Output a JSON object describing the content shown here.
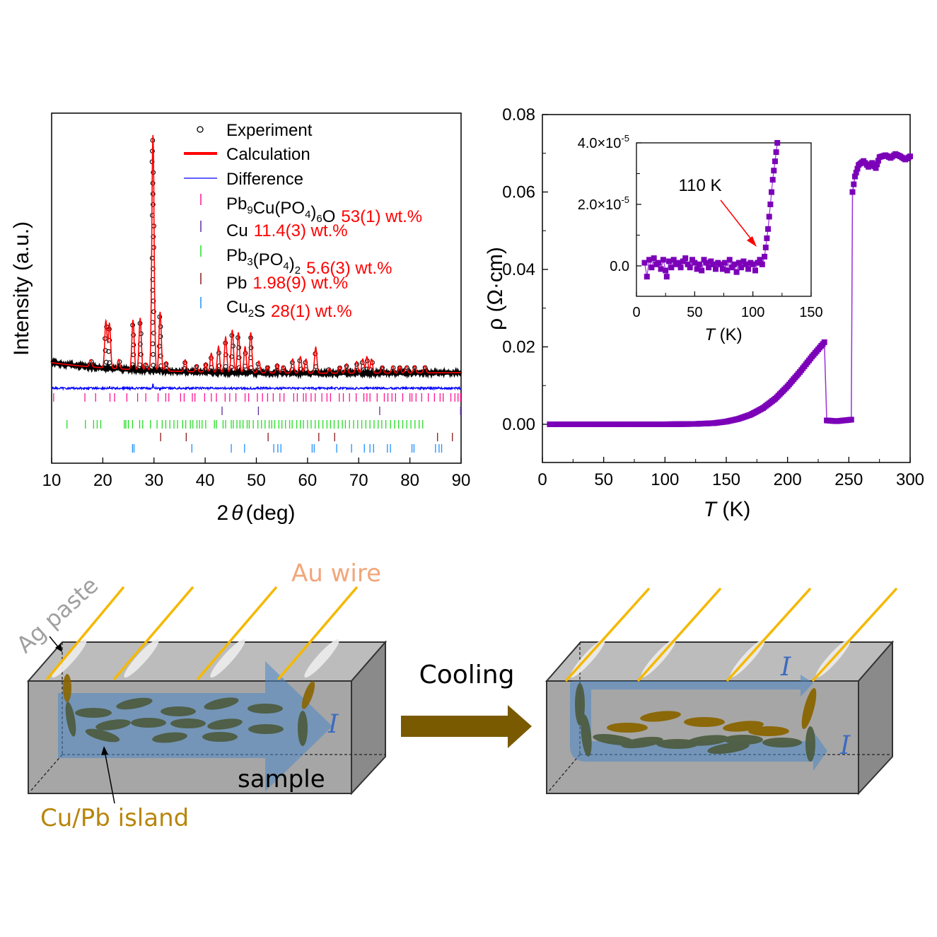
{
  "chart_data": [
    {
      "type": "line",
      "title": "",
      "xlabel": "2θ (deg)",
      "xlabel_parts": {
        "num": "2",
        "sym": "θ",
        "unit": "(deg)"
      },
      "ylabel": "Intensity (a.u.)",
      "xlim": [
        10,
        90
      ],
      "xticks": [
        "10",
        "20",
        "30",
        "40",
        "50",
        "60",
        "70",
        "80",
        "90"
      ],
      "yticks": [],
      "legend_placement": "top-right",
      "legend": [
        {
          "marker": "circle",
          "label": "Experiment",
          "color": "#000000"
        },
        {
          "marker": "line",
          "label": "Calculation",
          "color": "#ff0000"
        },
        {
          "marker": "line",
          "label": "Difference",
          "color": "#0000ff"
        },
        {
          "marker": "tick",
          "label_main": "Pb",
          "label_parts": [
            [
              "Pb",
              ""
            ],
            [
              "9",
              "sub"
            ],
            [
              "Cu(PO",
              ""
            ],
            [
              "4",
              "sub"
            ],
            [
              ")",
              ""
            ],
            [
              "6",
              "sub"
            ],
            [
              "O",
              ""
            ]
          ],
          "fraction": "53(1) wt.%",
          "color": "#ff1493"
        },
        {
          "marker": "tick",
          "label_parts": [
            [
              "Cu",
              ""
            ]
          ],
          "fraction": "11.4(3) wt.%",
          "color": "#5b2c9f"
        },
        {
          "marker": "tick",
          "label_parts": [
            [
              "Pb",
              ""
            ],
            [
              "3",
              "sub"
            ],
            [
              "(PO",
              ""
            ],
            [
              "4",
              "sub"
            ],
            [
              ")",
              ""
            ],
            [
              "2",
              "sub"
            ]
          ],
          "fraction": "5.6(3) wt.%",
          "color": "#22dd22"
        },
        {
          "marker": "tick",
          "label_parts": [
            [
              "Pb",
              ""
            ]
          ],
          "fraction": "1.98(9) wt.%",
          "color": "#8b1a1a"
        },
        {
          "marker": "tick",
          "label_parts": [
            [
              "Cu",
              ""
            ],
            [
              "2",
              "sub"
            ],
            [
              "S",
              ""
            ]
          ],
          "fraction": "28(1) wt.%",
          "color": "#1e90ff"
        }
      ],
      "peaks": [
        {
          "x": 17.6,
          "h": 0.03
        },
        {
          "x": 20.6,
          "h": 0.2
        },
        {
          "x": 21.3,
          "h": 0.19
        },
        {
          "x": 23.1,
          "h": 0.04
        },
        {
          "x": 25.9,
          "h": 0.21
        },
        {
          "x": 27.3,
          "h": 0.22
        },
        {
          "x": 28.5,
          "h": 0.03
        },
        {
          "x": 29.8,
          "h": 1.0
        },
        {
          "x": 31.2,
          "h": 0.25
        },
        {
          "x": 32.4,
          "h": 0.04
        },
        {
          "x": 36.1,
          "h": 0.05
        },
        {
          "x": 38.3,
          "h": 0.03
        },
        {
          "x": 40.1,
          "h": 0.04
        },
        {
          "x": 41.2,
          "h": 0.08
        },
        {
          "x": 42.6,
          "h": 0.11
        },
        {
          "x": 44.0,
          "h": 0.15
        },
        {
          "x": 45.3,
          "h": 0.18
        },
        {
          "x": 46.5,
          "h": 0.17
        },
        {
          "x": 47.8,
          "h": 0.11
        },
        {
          "x": 48.9,
          "h": 0.17
        },
        {
          "x": 50.5,
          "h": 0.05
        },
        {
          "x": 52.2,
          "h": 0.03
        },
        {
          "x": 54.1,
          "h": 0.04
        },
        {
          "x": 55.2,
          "h": 0.03
        },
        {
          "x": 57.1,
          "h": 0.06
        },
        {
          "x": 58.6,
          "h": 0.07
        },
        {
          "x": 59.7,
          "h": 0.06
        },
        {
          "x": 61.6,
          "h": 0.11
        },
        {
          "x": 64.3,
          "h": 0.02
        },
        {
          "x": 66.3,
          "h": 0.03
        },
        {
          "x": 67.6,
          "h": 0.04
        },
        {
          "x": 69.6,
          "h": 0.05
        },
        {
          "x": 70.8,
          "h": 0.06
        },
        {
          "x": 71.6,
          "h": 0.07
        },
        {
          "x": 72.5,
          "h": 0.06
        },
        {
          "x": 74.6,
          "h": 0.03
        },
        {
          "x": 76.6,
          "h": 0.03
        },
        {
          "x": 78.0,
          "h": 0.03
        },
        {
          "x": 79.3,
          "h": 0.03
        },
        {
          "x": 80.9,
          "h": 0.03
        },
        {
          "x": 82.9,
          "h": 0.03
        }
      ],
      "bragg_ticks": [
        {
          "phase": "Pb9Cu(PO4)6O",
          "color": "#ff1493",
          "x": [
            10.4,
            16.5,
            18.6,
            21.4,
            22.3,
            24.7,
            26.8,
            28.4,
            30.8,
            32.3,
            32.9,
            35.2,
            35.9,
            37.5,
            38.0,
            39.9,
            41.2,
            42.2,
            43.9,
            44.8,
            46.0,
            47.8,
            48.5,
            50.2,
            51.2,
            52.2,
            53.3,
            54.6,
            55.4,
            57.3,
            58.0,
            59.2,
            59.7,
            60.7,
            61.5,
            62.8,
            63.8,
            64.5,
            66.2,
            67.0,
            68.2,
            69.5,
            71.0,
            71.6,
            72.2,
            73.6,
            75.0,
            75.7,
            76.5,
            77.2,
            78.6,
            80.0,
            80.4,
            81.2,
            82.3,
            83.6,
            84.8,
            85.9,
            86.5,
            88.0,
            88.8,
            89.4,
            89.9
          ]
        },
        {
          "phase": "Cu",
          "color": "#5b2c9f",
          "x": [
            43.3,
            50.4,
            74.1,
            89.9
          ]
        },
        {
          "phase": "Pb3(PO4)2",
          "color": "#22dd22",
          "x": [
            13.0,
            16.6,
            18.2,
            18.9,
            19.6,
            24.2,
            24.5,
            25.0,
            25.8,
            27.2,
            27.8,
            29.3,
            30.6,
            31.6,
            32.3,
            33.1,
            33.9,
            34.6,
            35.6,
            36.2,
            37.1,
            37.6,
            38.4,
            38.9,
            39.4,
            40.1,
            41.8,
            42.2,
            43.5,
            44.0,
            45.1,
            45.5,
            46.2,
            46.8,
            47.4,
            48.2,
            48.6,
            49.4,
            50.3,
            51.0,
            51.7,
            52.5,
            53.0,
            53.6,
            54.4,
            55.0,
            55.7,
            56.5,
            57.0,
            57.9,
            58.6,
            59.2,
            60.0,
            60.7,
            61.5,
            62.2,
            63.0,
            63.8,
            64.5,
            65.2,
            66.0,
            66.8,
            67.4,
            68.2,
            69.0,
            69.8,
            70.6,
            71.4,
            72.2,
            73.0,
            73.8,
            74.5,
            75.3,
            76.2,
            77.0,
            77.8,
            78.6,
            79.4,
            80.2,
            81.0,
            81.8,
            82.5
          ]
        },
        {
          "phase": "Pb",
          "color": "#8b1a1a",
          "x": [
            31.3,
            36.3,
            52.3,
            62.2,
            65.3,
            85.4,
            88.3
          ]
        },
        {
          "phase": "Cu2S",
          "color": "#1e90ff",
          "x": [
            25.8,
            26.1,
            37.4,
            45.1,
            47.7,
            53.4,
            54.2,
            54.8,
            60.9,
            61.3,
            65.7,
            68.6,
            71.1,
            72.2,
            72.9,
            75.6,
            76.2,
            80.4,
            80.8,
            85.0,
            85.7,
            86.2
          ]
        }
      ]
    },
    {
      "type": "scatter",
      "title": "",
      "xlabel": "T (K)",
      "ylabel": "ρ (Ω·cm)",
      "xlim": [
        0,
        300
      ],
      "ylim": [
        -0.01,
        0.08
      ],
      "xticks": [
        "0",
        "50",
        "100",
        "150",
        "200",
        "250",
        "300"
      ],
      "yticks": [
        "0.00",
        "0.02",
        "0.04",
        "0.06",
        "0.08"
      ],
      "color": "#7b00b8",
      "series": [
        {
          "name": "rho",
          "points": [
            [
              6,
              0
            ],
            [
              25,
              0
            ],
            [
              50,
              0
            ],
            [
              75,
              0
            ],
            [
              100,
              0
            ],
            [
              125,
              0.0001
            ],
            [
              140,
              0.0003
            ],
            [
              150,
              0.0007
            ],
            [
              160,
              0.0014
            ],
            [
              170,
              0.0025
            ],
            [
              180,
              0.0042
            ],
            [
              190,
              0.0066
            ],
            [
              200,
              0.0098
            ],
            [
              210,
              0.0135
            ],
            [
              220,
              0.0175
            ],
            [
              230,
              0.0212
            ],
            [
              232,
              0.001
            ],
            [
              240,
              0.0008
            ],
            [
              252,
              0.0012
            ],
            [
              253,
              0.06
            ],
            [
              255,
              0.064
            ],
            [
              258,
              0.067
            ],
            [
              262,
              0.068
            ],
            [
              266,
              0.0665
            ],
            [
              269,
              0.0675
            ],
            [
              272,
              0.0662
            ],
            [
              275,
              0.069
            ],
            [
              280,
              0.0695
            ],
            [
              284,
              0.0688
            ],
            [
              288,
              0.0698
            ],
            [
              292,
              0.0692
            ],
            [
              296,
              0.0684
            ],
            [
              300,
              0.0692
            ]
          ]
        }
      ],
      "inset": {
        "xlabel": "T (K)",
        "xlim": [
          0,
          150
        ],
        "ylim": [
          -7e-06,
          4e-05
        ],
        "xticks": [
          "0",
          "50",
          "100",
          "150"
        ],
        "yticks": [
          {
            "label": "0.0",
            "base": "0.0",
            "exp": ""
          },
          {
            "label": "2.0×10⁻⁵",
            "base": "2.0×10",
            "exp": "-5"
          },
          {
            "label": "4.0×10⁻⁵",
            "base": "4.0×10",
            "exp": "-5"
          }
        ],
        "annotation": {
          "text": "110 K",
          "x": 110,
          "y": 1.5e-06,
          "arrow_color": "#ff0000"
        },
        "points": [
          [
            7,
            1e-06
          ],
          [
            9,
            -3.5e-06
          ],
          [
            11,
            2e-06
          ],
          [
            13,
            -5e-07
          ],
          [
            15,
            2.5e-06
          ],
          [
            17,
            5e-07
          ],
          [
            19,
            1e-06
          ],
          [
            21,
            -1e-06
          ],
          [
            23,
            2e-06
          ],
          [
            25,
            -1.5e-06
          ],
          [
            26,
            -3.5e-06
          ],
          [
            28,
            1.5e-06
          ],
          [
            30,
            -5e-07
          ],
          [
            32,
            2e-06
          ],
          [
            34,
            5e-07
          ],
          [
            36,
            1e-06
          ],
          [
            38,
            -5e-07
          ],
          [
            40,
            1.5e-06
          ],
          [
            42,
            2.5e-06
          ],
          [
            44,
            5e-07
          ],
          [
            46,
            -5e-07
          ],
          [
            48,
            2e-06
          ],
          [
            50,
            1e-06
          ],
          [
            52,
            -1e-06
          ],
          [
            54,
            5e-07
          ],
          [
            56,
            -1.5e-06
          ],
          [
            58,
            2e-06
          ],
          [
            60,
            1e-06
          ],
          [
            62,
            -5e-07
          ],
          [
            64,
            1.5e-06
          ],
          [
            66,
            5e-07
          ],
          [
            68,
            -1e-06
          ],
          [
            70,
            1e-06
          ],
          [
            72,
            5e-07
          ],
          [
            74,
            -1e-06
          ],
          [
            76,
            1e-06
          ],
          [
            78,
            -1.5e-06
          ],
          [
            80,
            2e-06
          ],
          [
            82,
            -5e-07
          ],
          [
            84,
            5e-07
          ],
          [
            86,
            -2e-06
          ],
          [
            88,
            1e-06
          ],
          [
            90,
            -5e-07
          ],
          [
            92,
            1.5e-06
          ],
          [
            94,
            5e-07
          ],
          [
            96,
            -1e-06
          ],
          [
            98,
            1e-06
          ],
          [
            100,
            5e-07
          ],
          [
            102,
            -1.5e-06
          ],
          [
            104,
            1e-06
          ],
          [
            106,
            2e-06
          ],
          [
            108,
            5e-07
          ],
          [
            110,
            3e-06
          ],
          [
            111,
            6e-06
          ],
          [
            112,
            9e-06
          ],
          [
            113,
            1.2e-05
          ],
          [
            114,
            1.6e-05
          ],
          [
            115,
            2e-05
          ],
          [
            116,
            2.4e-05
          ],
          [
            117,
            2.8e-05
          ],
          [
            118,
            3.1e-05
          ],
          [
            119,
            3.4e-05
          ],
          [
            120,
            3.7e-05
          ],
          [
            121,
            4e-05
          ]
        ]
      }
    }
  ],
  "diagram": {
    "left": {
      "labels": {
        "ag_paste": "Ag paste",
        "au_wire": "Au wire",
        "sample": "sample",
        "island": "Cu/Pb island",
        "current": "I"
      }
    },
    "arrow_label": "Cooling",
    "right": {
      "labels": {
        "current_top": "I",
        "current_bottom": "I"
      }
    },
    "colors": {
      "wire": "#f5b800",
      "sample_front": "#a6a6a6",
      "sample_top": "#bcbcbc",
      "sample_side": "#8a8a8a",
      "island_dark": "#4b5a3c",
      "island_gold": "#8a6500",
      "current_arrow": "#4a86c5",
      "cooling_arrow": "#7a5a00",
      "au_label": "#f2a67b",
      "ag_label": "#a0a0a0",
      "island_label": "#b8860b"
    }
  }
}
